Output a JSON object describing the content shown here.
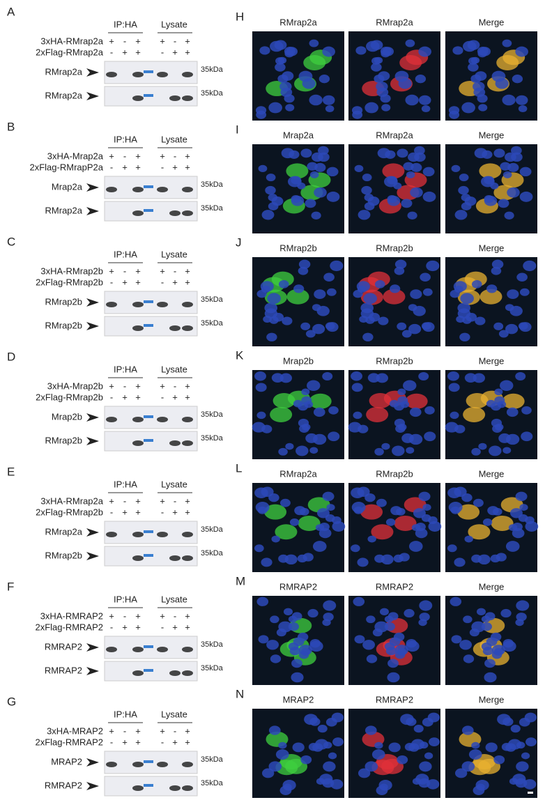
{
  "blots": [
    {
      "letter": "A",
      "ip": "IP:HA",
      "lysate": "Lysate",
      "conditions": [
        {
          "label": "3xHA-RMrap2a",
          "signs": [
            "+",
            "-",
            "+",
            "+",
            "-",
            "+"
          ]
        },
        {
          "label": "2xFlag-RMrap2a",
          "signs": [
            "-",
            "+",
            "+",
            "-",
            "+",
            "+"
          ]
        }
      ],
      "rows": [
        {
          "label": "RMrap2a",
          "marker": "35kDa"
        },
        {
          "label": "RMrap2a",
          "marker": "35kDa"
        }
      ]
    },
    {
      "letter": "B",
      "ip": "IP:HA",
      "lysate": "Lysate",
      "conditions": [
        {
          "label": "3xHA-Mrap2a",
          "signs": [
            "+",
            "-",
            "+",
            "+",
            "-",
            "+"
          ]
        },
        {
          "label": "2xFlag-RMrapP2a",
          "signs": [
            "-",
            "+",
            "+",
            "-",
            "+",
            "+"
          ]
        }
      ],
      "rows": [
        {
          "label": "Mrap2a",
          "marker": "35kDa"
        },
        {
          "label": "RMrap2a",
          "marker": "35kDa"
        }
      ]
    },
    {
      "letter": "C",
      "ip": "IP:HA",
      "lysate": "Lysate",
      "conditions": [
        {
          "label": "3xHA-RMrap2b",
          "signs": [
            "+",
            "-",
            "+",
            "+",
            "-",
            "+"
          ]
        },
        {
          "label": "2xFlag-RMrap2b",
          "signs": [
            "-",
            "+",
            "+",
            "-",
            "+",
            "+"
          ]
        }
      ],
      "rows": [
        {
          "label": "RMrap2b",
          "marker": "35kDa"
        },
        {
          "label": "RMrap2b",
          "marker": "35kDa"
        }
      ]
    },
    {
      "letter": "D",
      "ip": "IP:HA",
      "lysate": "Lysate",
      "conditions": [
        {
          "label": "3xHA-Mrap2b",
          "signs": [
            "+",
            "-",
            "+",
            "+",
            "-",
            "+"
          ]
        },
        {
          "label": "2xFlag-RMrap2b",
          "signs": [
            "-",
            "+",
            "+",
            "-",
            "+",
            "+"
          ]
        }
      ],
      "rows": [
        {
          "label": "Mrap2b",
          "marker": "35kDa"
        },
        {
          "label": "RMrap2b",
          "marker": "35kDa"
        }
      ]
    },
    {
      "letter": "E",
      "ip": "IP:HA",
      "lysate": "Lysate",
      "conditions": [
        {
          "label": "3xHA-RMrap2a",
          "signs": [
            "+",
            "-",
            "+",
            "+",
            "-",
            "+"
          ]
        },
        {
          "label": "2xFlag-RMrap2b",
          "signs": [
            "-",
            "+",
            "+",
            "-",
            "+",
            "+"
          ]
        }
      ],
      "rows": [
        {
          "label": "RMrap2a",
          "marker": "35kDa"
        },
        {
          "label": "RMrap2b",
          "marker": "35kDa"
        }
      ]
    },
    {
      "letter": "F",
      "ip": "IP:HA",
      "lysate": "Lysate",
      "conditions": [
        {
          "label": "3xHA-RMRAP2",
          "signs": [
            "+",
            "-",
            "+",
            "+",
            "-",
            "+"
          ]
        },
        {
          "label": "2xFlag-RMRAP2",
          "signs": [
            "-",
            "+",
            "+",
            "-",
            "+",
            "+"
          ]
        }
      ],
      "rows": [
        {
          "label": "RMRAP2",
          "marker": "35kDa"
        },
        {
          "label": "RMRAP2",
          "marker": "35kDa"
        }
      ]
    },
    {
      "letter": "G",
      "ip": "IP:HA",
      "lysate": "Lysate",
      "conditions": [
        {
          "label": "3xHA-MRAP2",
          "signs": [
            "+",
            "-",
            "+",
            "+",
            "-",
            "+"
          ]
        },
        {
          "label": "2xFlag-RMRAP2",
          "signs": [
            "-",
            "+",
            "+",
            "-",
            "+",
            "+"
          ]
        }
      ],
      "rows": [
        {
          "label": "MRAP2",
          "marker": "35kDa"
        },
        {
          "label": "RMRAP2",
          "marker": "35kDa"
        }
      ]
    }
  ],
  "images": [
    {
      "letter": "H",
      "channels": [
        "RMrap2a",
        "RMrap2a",
        "Merge"
      ]
    },
    {
      "letter": "I",
      "channels": [
        "Mrap2a",
        "RMrap2a",
        "Merge"
      ]
    },
    {
      "letter": "J",
      "channels": [
        "RMrap2b",
        "RMrap2b",
        "Merge"
      ]
    },
    {
      "letter": "K",
      "channels": [
        "Mrap2b",
        "RMrap2b",
        "Merge"
      ]
    },
    {
      "letter": "L",
      "channels": [
        "RMrap2a",
        "RMrap2b",
        "Merge"
      ]
    },
    {
      "letter": "M",
      "channels": [
        "RMRAP2",
        "RMRAP2",
        "Merge"
      ]
    },
    {
      "letter": "N",
      "channels": [
        "MRAP2",
        "RMRAP2",
        "Merge"
      ]
    }
  ]
}
